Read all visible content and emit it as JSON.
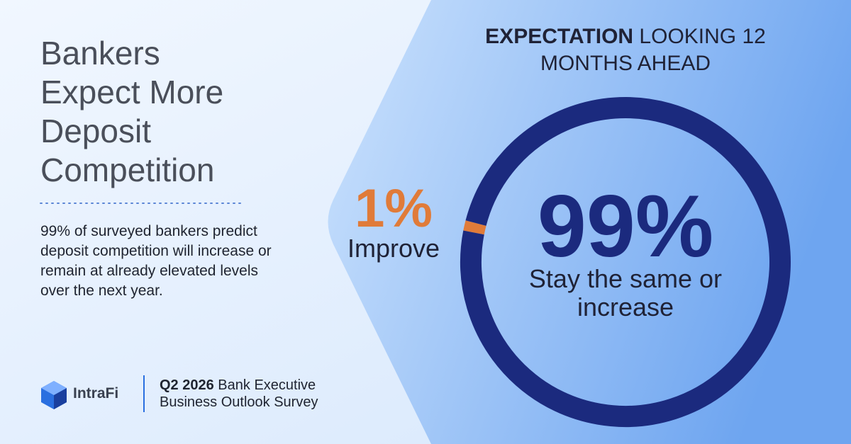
{
  "headline": "Bankers Expect More Deposit Competition",
  "description": "99% of surveyed bankers predict deposit competition will increase or remain at already elevated levels over the next year.",
  "brand": "IntraFi",
  "footer": {
    "bold": "Q2 2026",
    "rest": "Bank Executive Business Outlook Survey"
  },
  "chart_data": {
    "type": "donut",
    "title": {
      "bold": "EXPECTATION",
      "rest": "LOOKING 12 MONTHS AHEAD"
    },
    "categories": [
      "Improve",
      "Stay the same or increase"
    ],
    "values": [
      1,
      99
    ],
    "value_labels": [
      "1%",
      "99%"
    ],
    "colors": [
      "#e07b39",
      "#1b2a7e"
    ]
  }
}
